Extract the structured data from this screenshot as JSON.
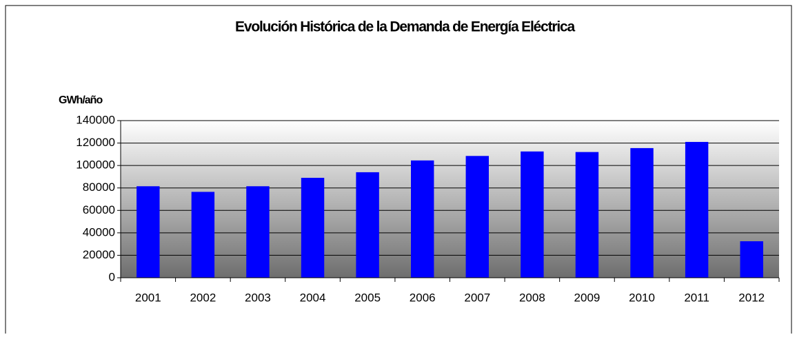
{
  "chart_data": {
    "type": "bar",
    "title": "Evolución Histórica de la Demanda de Energía Eléctrica",
    "y_label": "GWh/año",
    "categories": [
      "2001",
      "2002",
      "2003",
      "2004",
      "2005",
      "2006",
      "2007",
      "2008",
      "2009",
      "2010",
      "2011",
      "2012"
    ],
    "values": [
      81500,
      76500,
      81500,
      89000,
      94000,
      104500,
      108500,
      112500,
      112000,
      115500,
      121000,
      32500
    ],
    "color": "#0000ff",
    "ylim": [
      0,
      140000
    ],
    "yticks": [
      0,
      20000,
      40000,
      60000,
      80000,
      100000,
      120000,
      140000
    ],
    "grid": true
  }
}
